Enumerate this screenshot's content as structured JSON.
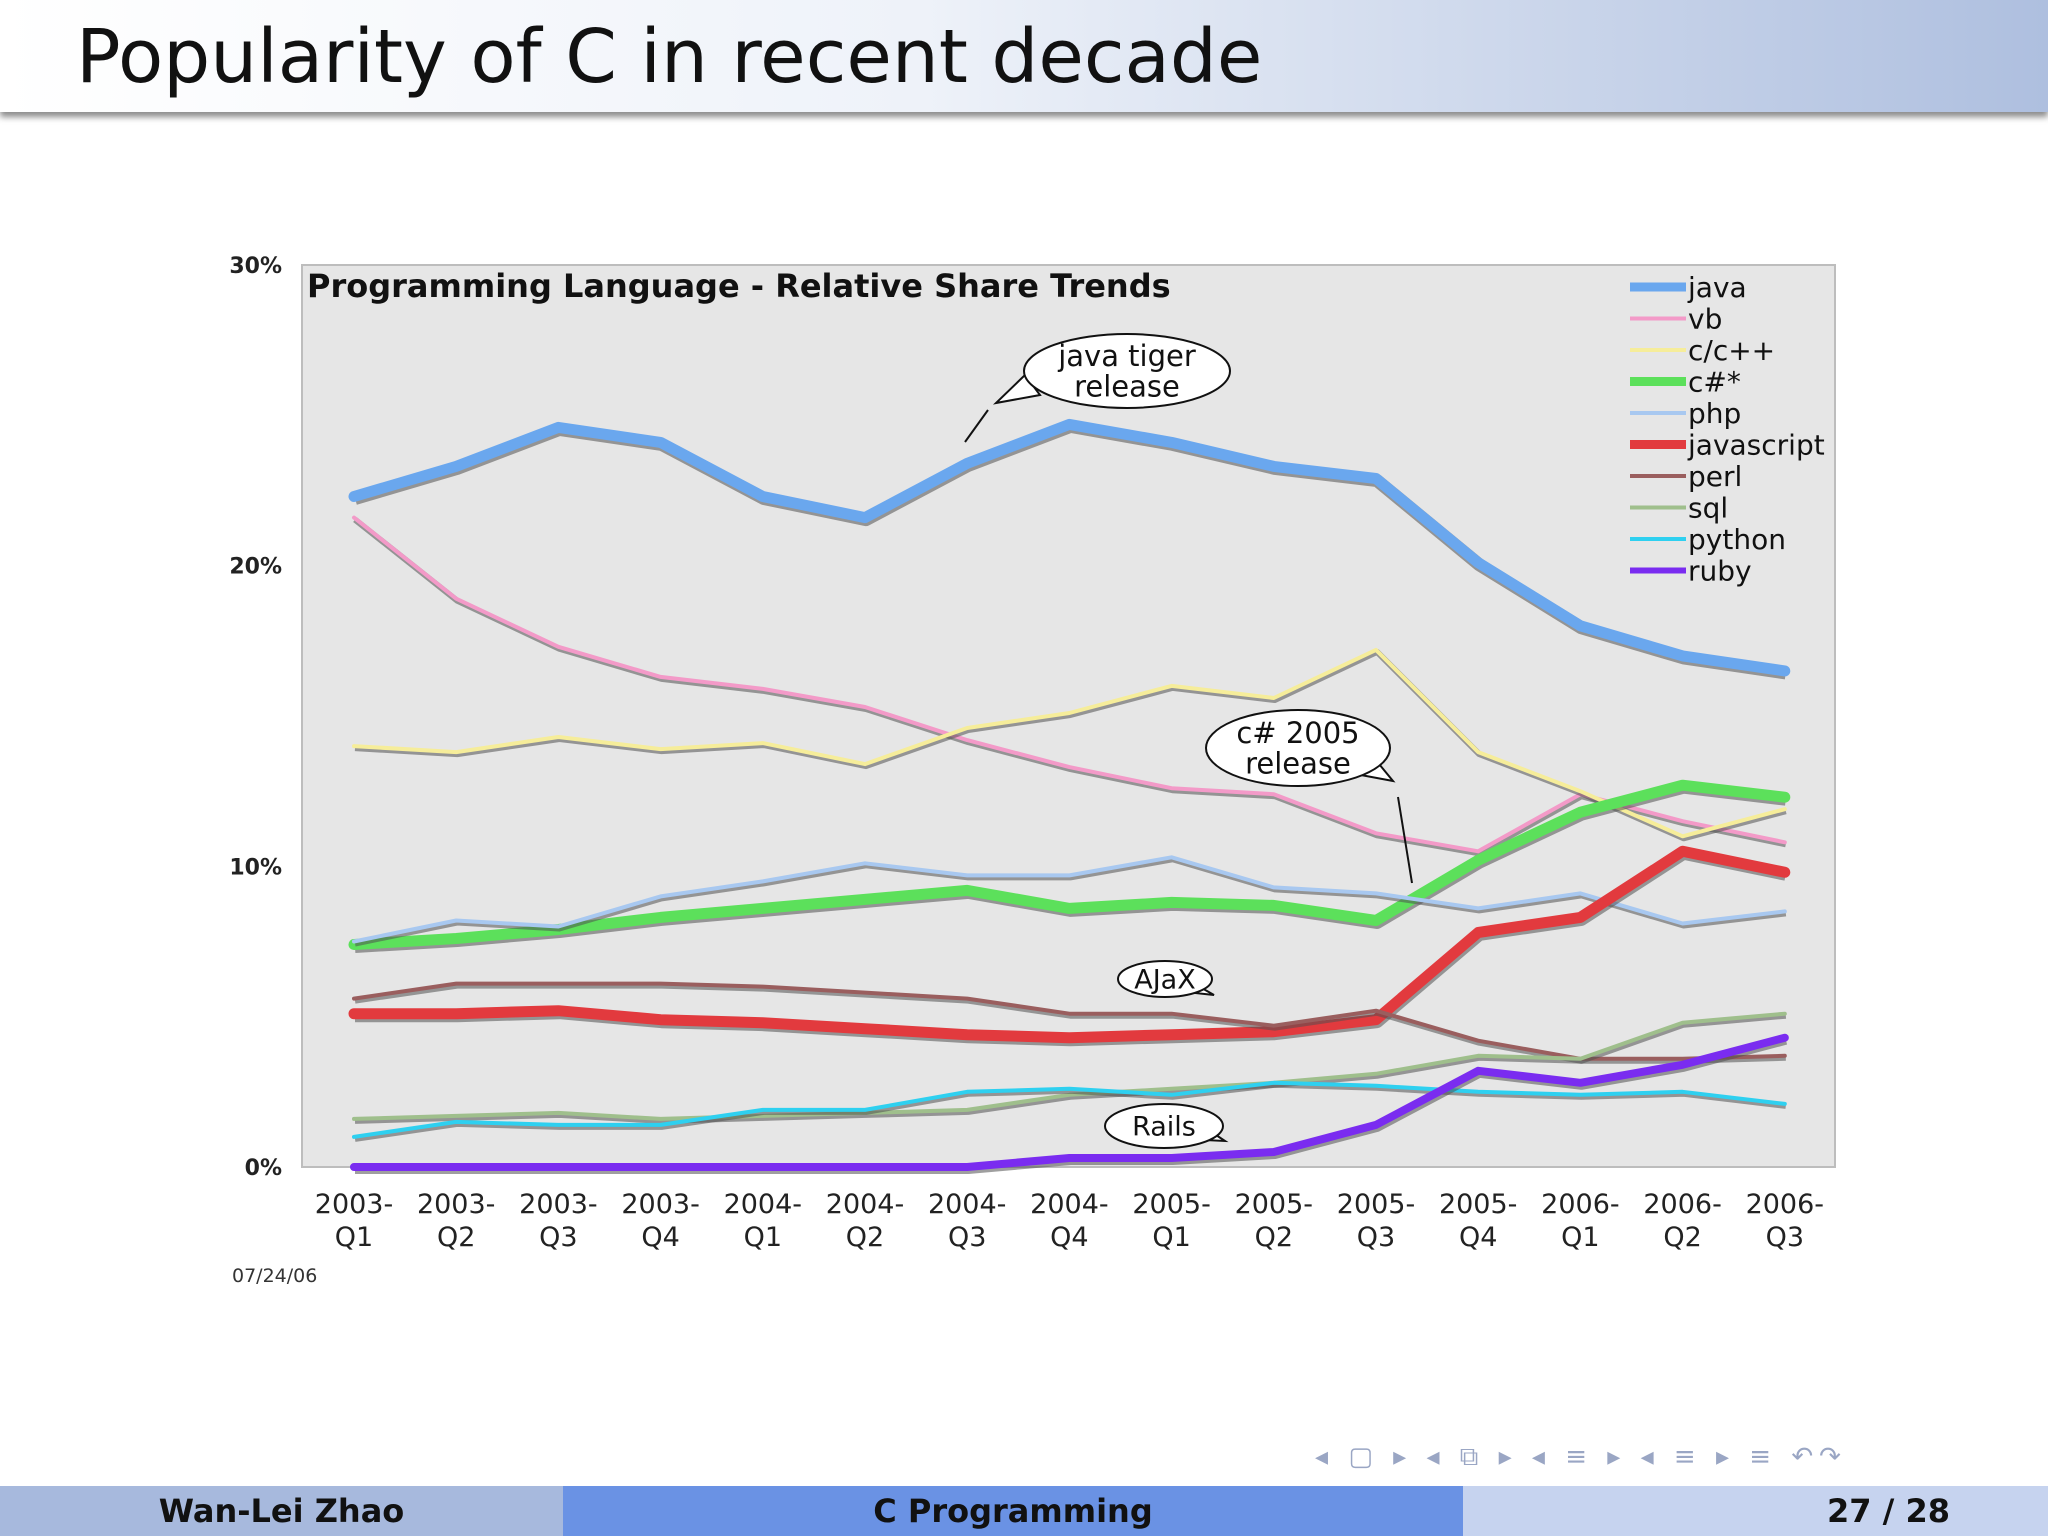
{
  "slide": {
    "title": "Popularity of C in recent decade"
  },
  "footer": {
    "author": "Wan-Lei Zhao",
    "course": "C Programming",
    "page": "27 / 28"
  },
  "nav": {
    "symbols": "◂ ▢ ▸ ◂ ⧉ ▸ ◂ ≡ ▸ ◂ ≡ ▸   ≡   ↶↷"
  },
  "chart_data": {
    "type": "line",
    "title": "Programming Language - Relative Share Trends",
    "date_note": "07/24/06",
    "categories": [
      "2003-\nQ1",
      "2003-\nQ2",
      "2003-\nQ3",
      "2003-\nQ4",
      "2004-\nQ1",
      "2004-\nQ2",
      "2004-\nQ3",
      "2004-\nQ4",
      "2005-\nQ1",
      "2005-\nQ2",
      "2005-\nQ3",
      "2005-\nQ4",
      "2006-\nQ1",
      "2006-\nQ2",
      "2006-\nQ3"
    ],
    "y_ticks": [
      "0%",
      "10%",
      "20%",
      "30%"
    ],
    "ylim": [
      0,
      30
    ],
    "grid": false,
    "legend": "top-right",
    "series": [
      {
        "name": "java",
        "color": "#6aa7ee",
        "width": 11,
        "values": [
          22.3,
          23.3,
          24.6,
          24.1,
          22.3,
          21.6,
          23.4,
          24.7,
          24.1,
          23.3,
          22.9,
          20.1,
          18.0,
          17.0,
          16.5
        ]
      },
      {
        "name": "vb",
        "color": "#f39ac8",
        "width": 4,
        "values": [
          21.6,
          18.9,
          17.3,
          16.3,
          15.9,
          15.3,
          14.2,
          13.3,
          12.6,
          12.4,
          11.1,
          10.5,
          12.4,
          11.5,
          10.8
        ]
      },
      {
        "name": "c/c++",
        "color": "#f6ed9a",
        "width": 4,
        "values": [
          14.0,
          13.8,
          14.3,
          13.9,
          14.1,
          13.4,
          14.6,
          15.1,
          16.0,
          15.6,
          17.2,
          13.8,
          12.5,
          11.0,
          11.9
        ]
      },
      {
        "name": "c#*",
        "color": "#5ce05b",
        "width": 11,
        "values": [
          7.4,
          7.6,
          7.9,
          8.3,
          8.6,
          8.9,
          9.2,
          8.6,
          8.8,
          8.7,
          8.2,
          10.2,
          11.8,
          12.7,
          12.3
        ]
      },
      {
        "name": "php",
        "color": "#a8c8f0",
        "width": 4,
        "values": [
          7.5,
          8.2,
          8.0,
          9.0,
          9.5,
          10.1,
          9.7,
          9.7,
          10.3,
          9.3,
          9.1,
          8.6,
          9.1,
          8.1,
          8.5
        ]
      },
      {
        "name": "javascript",
        "color": "#e23a3e",
        "width": 11,
        "values": [
          5.1,
          5.1,
          5.2,
          4.9,
          4.8,
          4.6,
          4.4,
          4.3,
          4.4,
          4.5,
          4.9,
          7.8,
          8.3,
          10.5,
          9.8
        ]
      },
      {
        "name": "perl",
        "color": "#9a5e5e",
        "width": 4,
        "values": [
          5.6,
          6.1,
          6.1,
          6.1,
          6.0,
          5.8,
          5.6,
          5.1,
          5.1,
          4.7,
          5.2,
          4.2,
          3.6,
          3.6,
          3.7
        ]
      },
      {
        "name": "sql",
        "color": "#9fbf8c",
        "width": 4,
        "values": [
          1.6,
          1.7,
          1.8,
          1.6,
          1.7,
          1.8,
          1.9,
          2.4,
          2.6,
          2.8,
          3.1,
          3.7,
          3.6,
          4.8,
          5.1
        ]
      },
      {
        "name": "python",
        "color": "#2ed0f0",
        "width": 4,
        "values": [
          1.0,
          1.5,
          1.4,
          1.4,
          1.9,
          1.9,
          2.5,
          2.6,
          2.4,
          2.8,
          2.7,
          2.5,
          2.4,
          2.5,
          2.1
        ]
      },
      {
        "name": "ruby",
        "color": "#7a2cf0",
        "width": 8,
        "values": [
          0.0,
          0.0,
          0.0,
          0.0,
          0.0,
          0.0,
          0.0,
          0.3,
          0.3,
          0.5,
          1.4,
          3.2,
          2.8,
          3.4,
          4.3
        ]
      }
    ],
    "annotations": [
      {
        "text": "java tiger\nrelease",
        "category_index": 6
      },
      {
        "text": "c# 2005\nrelease",
        "category_index": 10
      },
      {
        "text": "AJaX",
        "category_index": 8
      },
      {
        "text": "Rails",
        "category_index": 8
      }
    ]
  }
}
